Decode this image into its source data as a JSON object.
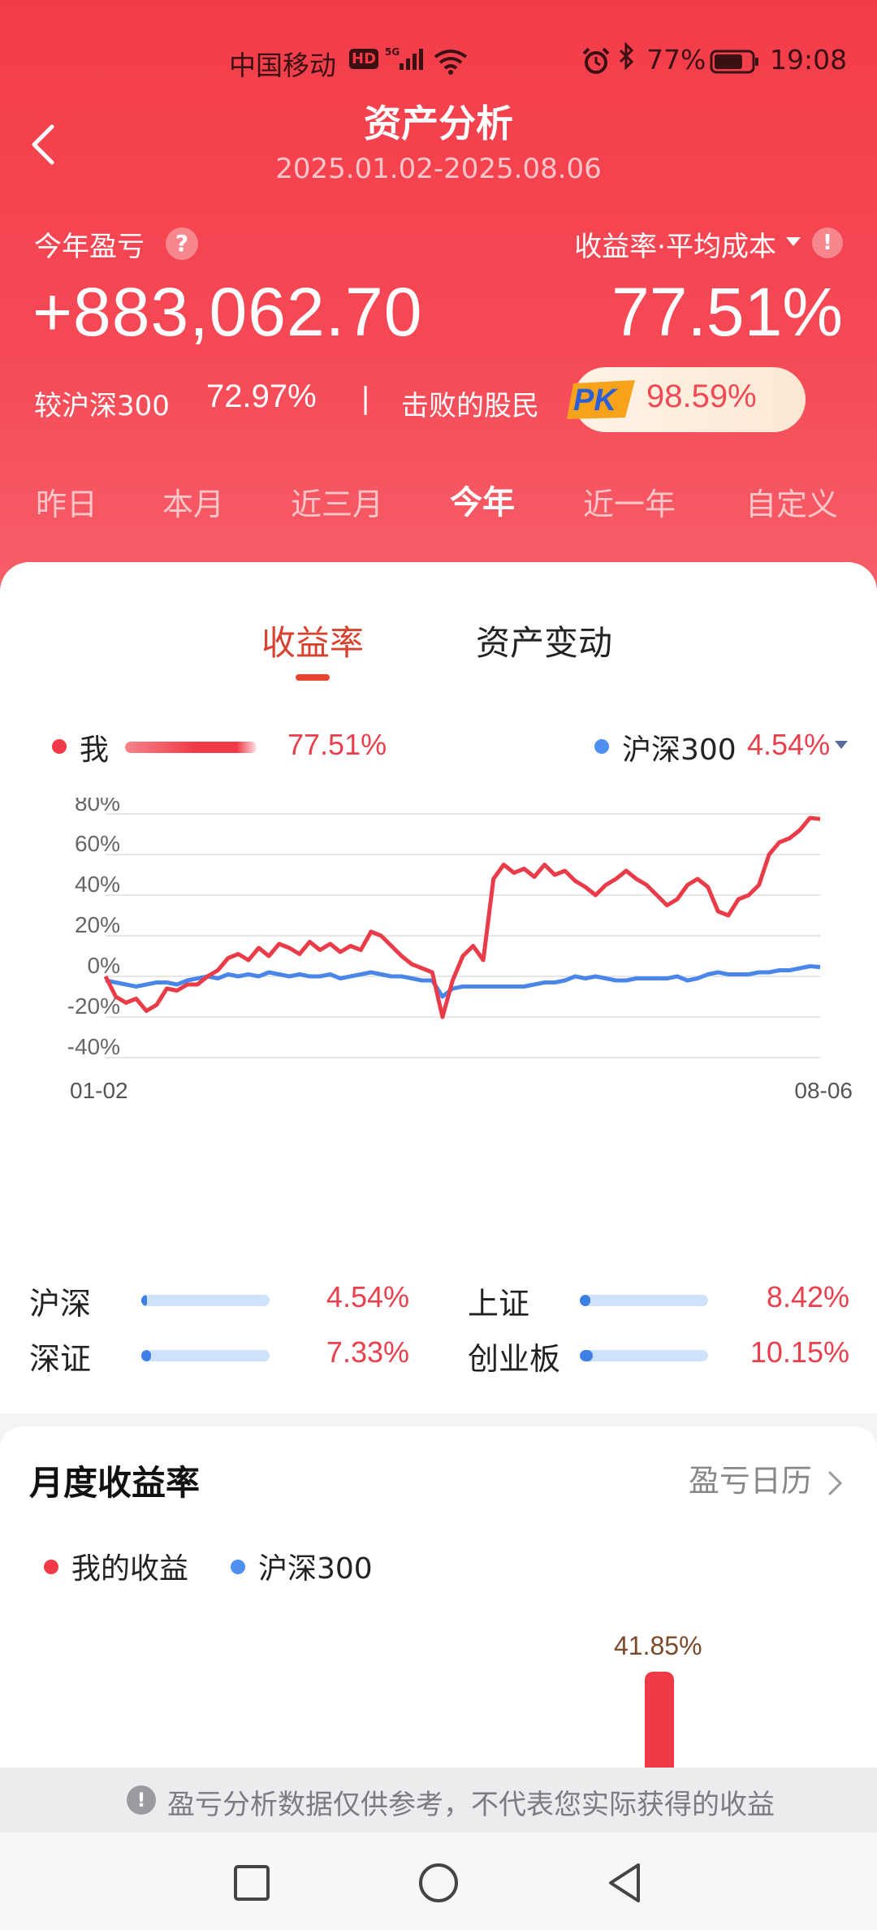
{
  "status_bar": {
    "carrier": "中国移动",
    "hd": "HD",
    "signal": "5G",
    "battery_pct": "77%",
    "battery_level": 0.77,
    "time": "19:08"
  },
  "header": {
    "title": "资产分析",
    "date_range": "2025.01.02-2025.08.06",
    "pl_label": "今年盈亏",
    "pl_value": "+883,062.70",
    "rate_label": "收益率·平均成本",
    "rate_value": "77.51%",
    "compare_label": "较沪深300",
    "compare_value": "72.97%",
    "separator": "|",
    "beat_label": "击败的股民",
    "pk_text": "PK",
    "beat_value": "98.59%",
    "help_symbol": "?",
    "info_symbol": "!"
  },
  "period_tabs": [
    {
      "label": "昨日",
      "active": false
    },
    {
      "label": "本月",
      "active": false
    },
    {
      "label": "近三月",
      "active": false
    },
    {
      "label": "今年",
      "active": true
    },
    {
      "label": "近一年",
      "active": false
    },
    {
      "label": "自定义",
      "active": false
    }
  ],
  "sub_tabs": {
    "returns": "收益率",
    "asset_change": "资产变动",
    "active": "returns"
  },
  "chart_legend": {
    "me_label": "我",
    "me_value": "77.51%",
    "index_label": "沪深300",
    "index_value": "4.54%"
  },
  "chart_data": {
    "type": "line",
    "ylim": [
      -40,
      80
    ],
    "yticks": [
      "80%",
      "60%",
      "40%",
      "20%",
      "0%",
      "-20%",
      "-40%"
    ],
    "x_start_label": "01-02",
    "x_end_label": "08-06",
    "grid": true,
    "series": [
      {
        "name": "我",
        "color": "#ea3b48",
        "values": [
          0,
          -10,
          -13,
          -11,
          -17,
          -14,
          -6,
          -7,
          -4,
          -4,
          0,
          3,
          9,
          11,
          8,
          14,
          10,
          16,
          14,
          11,
          17,
          13,
          16,
          12,
          15,
          13,
          22,
          20,
          15,
          10,
          6,
          4,
          2,
          -20,
          -2,
          10,
          15,
          8,
          48,
          55,
          51,
          53,
          49,
          55,
          50,
          52,
          47,
          44,
          40,
          45,
          48,
          52,
          48,
          45,
          40,
          35,
          38,
          45,
          48,
          44,
          32,
          30,
          38,
          40,
          45,
          60,
          66,
          68,
          72,
          78,
          77.5
        ]
      },
      {
        "name": "沪深300",
        "color": "#4a86ea",
        "values": [
          -2,
          -3,
          -4,
          -5,
          -4,
          -3,
          -3,
          -4,
          -2,
          -1,
          0,
          -1,
          1,
          0,
          1,
          0,
          2,
          1,
          0,
          1,
          0,
          0,
          1,
          -1,
          0,
          1,
          2,
          1,
          0,
          0,
          -1,
          -2,
          -2,
          -10,
          -6,
          -5,
          -5,
          -5,
          -5,
          -5,
          -5,
          -5,
          -4,
          -3,
          -3,
          -2,
          0,
          -1,
          0,
          -1,
          -2,
          -2,
          -1,
          -1,
          -1,
          -1,
          0,
          -2,
          -1,
          1,
          2,
          1,
          1,
          1,
          2,
          2,
          3,
          3,
          4,
          5,
          4.54
        ]
      }
    ]
  },
  "benchmarks": [
    {
      "name": "沪深",
      "value": "4.54%",
      "fill": 0.045
    },
    {
      "name": "上证",
      "value": "8.42%",
      "fill": 0.084
    },
    {
      "name": "深证",
      "value": "7.33%",
      "fill": 0.073
    },
    {
      "name": "创业板",
      "value": "10.15%",
      "fill": 0.101
    }
  ],
  "monthly": {
    "title": "月度收益率",
    "calendar_link": "盈亏日历",
    "legend_me": "我的收益",
    "legend_index": "沪深300",
    "bar_label": "41.85%"
  },
  "disclaimer": {
    "icon": "!",
    "text": "盈亏分析数据仅供参考，不代表您实际获得的收益"
  }
}
